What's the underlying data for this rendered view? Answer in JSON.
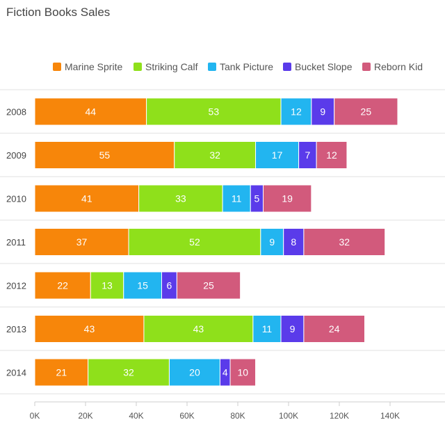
{
  "chart_data": {
    "type": "bar",
    "orientation": "horizontal",
    "stacked": true,
    "title": "Fiction Books Sales",
    "xlabel": "",
    "ylabel": "",
    "categories": [
      "2008",
      "2009",
      "2010",
      "2011",
      "2012",
      "2013",
      "2014"
    ],
    "x_ticks": [
      "0K",
      "20K",
      "40K",
      "60K",
      "80K",
      "100K",
      "120K",
      "140K"
    ],
    "xlim": [
      0,
      160
    ],
    "legend_position": "top",
    "grid": true,
    "series": [
      {
        "name": "Marine Sprite",
        "color": "#f7860a",
        "values": [
          44,
          55,
          41,
          37,
          22,
          43,
          21
        ]
      },
      {
        "name": "Striking Calf",
        "color": "#8fe01b",
        "values": [
          53,
          32,
          33,
          52,
          13,
          43,
          32
        ]
      },
      {
        "name": "Tank Picture",
        "color": "#22b5f0",
        "values": [
          12,
          17,
          11,
          9,
          15,
          11,
          20
        ]
      },
      {
        "name": "Bucket Slope",
        "color": "#5a3bea",
        "values": [
          9,
          7,
          5,
          8,
          6,
          9,
          4
        ]
      },
      {
        "name": "Reborn Kid",
        "color": "#d25a7c",
        "values": [
          25,
          12,
          19,
          32,
          25,
          24,
          10
        ]
      }
    ]
  }
}
